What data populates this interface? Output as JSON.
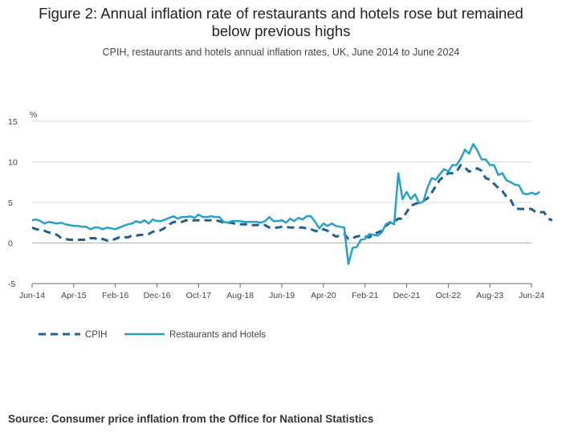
{
  "header": {
    "title_line1": "Figure 2: Annual inflation rate of restaurants and hotels rose but remained",
    "title_line2": "below previous highs",
    "subtitle": "CPIH, restaurants and hotels annual inflation rates, UK, June 2014 to June 2024"
  },
  "footer": {
    "source": "Source: Consumer price inflation from the Office for National Statistics"
  },
  "colors": {
    "cpih": "#206095",
    "restaurants": "#27a0cc",
    "grid": "#d9d9d9",
    "zero_line": "#b3b3b3"
  },
  "chart_data": {
    "type": "line",
    "title": "Figure 2: Annual inflation rate of restaurants and hotels rose but remained below previous highs",
    "subtitle": "CPIH, restaurants and hotels annual inflation rates, UK, June 2014 to June 2024",
    "ylabel": "%",
    "ylim": [
      -5,
      15
    ],
    "yticks": [
      -5,
      0,
      5,
      10,
      15
    ],
    "x_start": "Jun-14",
    "x_end": "Jun-24",
    "x_count": 121,
    "x_ticks": [
      {
        "index": 0,
        "label": "Jun-14"
      },
      {
        "index": 10,
        "label": "Apr-15"
      },
      {
        "index": 20,
        "label": "Feb-16"
      },
      {
        "index": 30,
        "label": "Dec-16"
      },
      {
        "index": 40,
        "label": "Oct-17"
      },
      {
        "index": 50,
        "label": "Aug-18"
      },
      {
        "index": 60,
        "label": "Jun-19"
      },
      {
        "index": 70,
        "label": "Apr-20"
      },
      {
        "index": 80,
        "label": "Feb-21"
      },
      {
        "index": 90,
        "label": "Dec-21"
      },
      {
        "index": 100,
        "label": "Oct-22"
      },
      {
        "index": 110,
        "label": "Aug-23"
      },
      {
        "index": 120,
        "label": "Jun-24"
      }
    ],
    "legend_position": "bottom-left",
    "grid": true,
    "series": [
      {
        "name": "CPIH",
        "style": "dashed",
        "values": [
          1.9,
          1.7,
          1.6,
          1.5,
          1.3,
          1.2,
          1.0,
          0.6,
          0.5,
          0.4,
          0.4,
          0.4,
          0.4,
          0.4,
          0.6,
          0.6,
          0.4,
          0.5,
          0.3,
          0.3,
          0.5,
          0.7,
          0.7,
          0.7,
          0.9,
          0.9,
          1.0,
          1.0,
          1.1,
          1.4,
          1.4,
          1.6,
          1.9,
          2.3,
          2.6,
          2.6,
          2.6,
          2.8,
          2.7,
          2.8,
          2.8,
          2.8,
          2.8,
          2.8,
          2.8,
          2.7,
          2.5,
          2.5,
          2.5,
          2.3,
          2.3,
          2.3,
          2.3,
          2.2,
          2.2,
          2.3,
          2.2,
          1.9,
          1.9,
          1.9,
          2.0,
          2.0,
          1.9,
          1.9,
          1.9,
          1.9,
          1.8,
          1.7,
          1.5,
          1.4,
          1.7,
          1.5,
          1.1,
          0.8,
          0.9,
          1.1,
          0.5,
          0.6,
          0.8,
          0.9,
          0.8,
          0.7,
          1.0,
          1.3,
          1.5,
          2.1,
          2.5,
          2.6,
          3.0,
          3.0,
          3.8,
          4.6,
          4.8,
          5.0,
          5.2,
          5.5,
          6.2,
          7.0,
          7.8,
          8.2,
          8.6,
          8.6,
          8.8,
          9.6,
          9.3,
          8.8,
          9.0,
          9.2,
          8.9,
          8.0,
          7.8,
          7.3,
          6.8,
          6.4,
          5.7,
          5.3,
          4.3,
          4.2,
          4.2,
          4.2,
          4.2,
          3.8,
          3.8,
          3.8,
          3.0,
          2.8
        ]
      },
      {
        "name": "Restaurants and Hotels",
        "style": "solid",
        "values": [
          2.8,
          2.9,
          2.7,
          2.4,
          2.6,
          2.5,
          2.4,
          2.5,
          2.3,
          2.2,
          2.1,
          2.1,
          2.0,
          2.0,
          1.7,
          1.9,
          1.9,
          1.7,
          1.9,
          1.8,
          1.7,
          1.9,
          2.1,
          2.3,
          2.4,
          2.7,
          2.5,
          2.8,
          2.4,
          2.9,
          2.7,
          2.7,
          2.9,
          3.1,
          3.3,
          3.0,
          3.2,
          3.2,
          3.3,
          3.1,
          3.5,
          3.2,
          3.2,
          3.3,
          3.2,
          3.2,
          2.6,
          2.5,
          2.7,
          2.7,
          2.7,
          2.6,
          2.6,
          2.6,
          2.6,
          2.5,
          2.7,
          3.2,
          2.7,
          2.7,
          2.8,
          2.5,
          3.0,
          2.7,
          3.1,
          2.9,
          3.3,
          3.3,
          2.6,
          1.8,
          2.4,
          2.1,
          2.4,
          2.1,
          2.0,
          1.9,
          -2.6,
          -0.6,
          -0.5,
          0.4,
          0.5,
          1.1,
          1.0,
          0.9,
          1.3,
          2.3,
          2.6,
          2.3,
          8.6,
          5.4,
          6.3,
          5.4,
          6.0,
          4.9,
          5.1,
          6.8,
          8.0,
          7.8,
          8.5,
          9.1,
          8.8,
          9.6,
          9.6,
          10.4,
          11.5,
          11.0,
          12.2,
          11.4,
          10.3,
          10.3,
          9.6,
          9.6,
          8.4,
          8.6,
          7.7,
          7.5,
          7.2,
          7.1,
          6.1,
          6.0,
          6.2,
          6.0,
          6.3
        ]
      }
    ]
  }
}
